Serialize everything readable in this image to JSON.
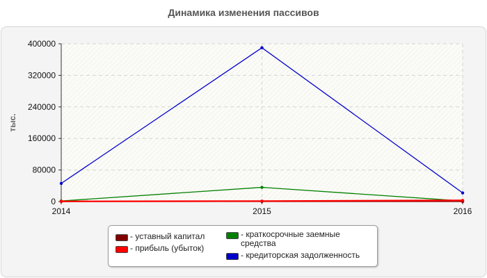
{
  "chart_data": {
    "type": "line",
    "title": "Динамика изменения пассивов",
    "ylabel": "тыс.",
    "xlabel": "",
    "x": [
      "2014",
      "2015",
      "2016"
    ],
    "ylim": [
      0,
      400000
    ],
    "yticks": [
      "0",
      "80000",
      "160000",
      "240000",
      "320000",
      "400000"
    ],
    "ytick_values": [
      0,
      80000,
      160000,
      240000,
      320000,
      400000
    ],
    "grid": true,
    "legend_position": "bottom",
    "series": [
      {
        "name": "уставный капитал",
        "color": "#800000",
        "values": [
          100,
          100,
          100
        ]
      },
      {
        "name": "прибыль (убыток)",
        "color": "#ff0000",
        "values": [
          500,
          1200,
          3000
        ]
      },
      {
        "name": "краткосрочные заемные средства",
        "color": "#008000",
        "values": [
          1500,
          36000,
          1500
        ]
      },
      {
        "name": "кредиторская задолженность",
        "color": "#0000cc",
        "values": [
          46000,
          390000,
          22000
        ]
      }
    ]
  }
}
